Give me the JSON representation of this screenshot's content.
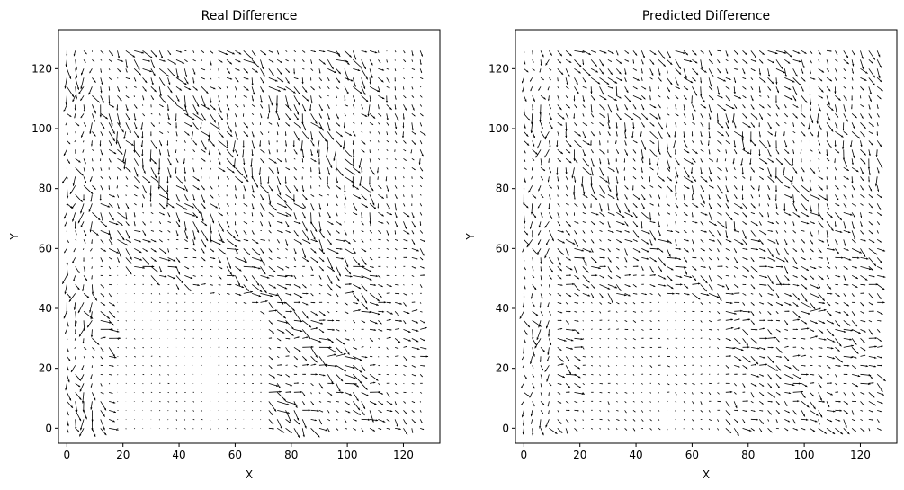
{
  "chart_data": [
    {
      "type": "quiver",
      "title": "Real Difference",
      "xlabel": "X",
      "ylabel": "Y",
      "xlim": [
        -3,
        133
      ],
      "ylim": [
        -5,
        133
      ],
      "xticks": [
        "0",
        "20",
        "40",
        "60",
        "80",
        "100",
        "120"
      ],
      "yticks": [
        "0",
        "20",
        "40",
        "60",
        "80",
        "100",
        "120"
      ],
      "grid": false,
      "field": {
        "grid_x_range": [
          0,
          128
        ],
        "grid_y_range": [
          0,
          128
        ],
        "description_notes": "dense black arrow field; long arrows along diagonal bands from upper-left to lower-right, near-zero arrows in lower-left region around x 20-60, y 0-50"
      }
    },
    {
      "type": "quiver",
      "title": "Predicted Difference",
      "xlabel": "X",
      "ylabel": "Y",
      "xlim": [
        -3,
        133
      ],
      "ylim": [
        -5,
        133
      ],
      "xticks": [
        "0",
        "20",
        "40",
        "60",
        "80",
        "100",
        "120"
      ],
      "yticks": [
        "0",
        "20",
        "40",
        "60",
        "80",
        "100",
        "120"
      ],
      "grid": false,
      "field": {
        "grid_x_range": [
          0,
          128
        ],
        "grid_y_range": [
          0,
          128
        ],
        "description_notes": "dense black arrow field, more uniform than the real field; smaller arrows in lower-left region"
      }
    }
  ],
  "colors": {
    "arrow": "#000000",
    "axes": "#000000",
    "background": "#ffffff"
  }
}
